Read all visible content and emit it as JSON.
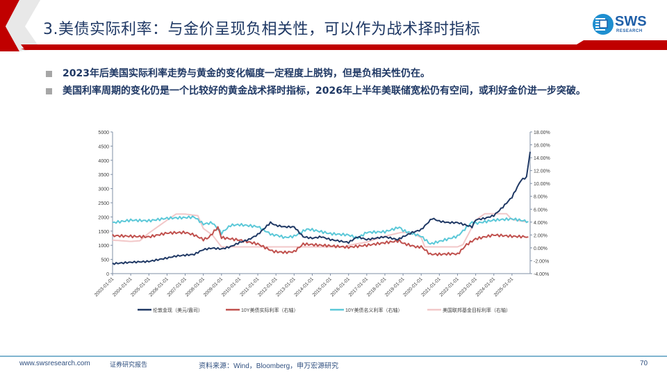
{
  "header": {
    "title": "3.美债实际利率：与金价呈现负相关性，可以作为战术择时指标",
    "logo_text": "SWS",
    "logo_sub": "RESEARCH",
    "accent_red": "#c00000",
    "title_color": "#1f3864"
  },
  "bullets": [
    {
      "text": "2023年后美国实际利率走势与黄金的变化幅度一定程度上脱钩，但是负相关性仍在。"
    },
    {
      "text": "美国利率周期的变化仍是一个比较好的黄金战术择时指标，2026年上半年美联储宽松仍有空间，或利好金价进一步突破。"
    }
  ],
  "chart_data": {
    "type": "line",
    "title": "",
    "x": [
      "2003-01-01",
      "2004-01-01",
      "2005-01-01",
      "2006-01-01",
      "2007-01-01",
      "2008-01-01",
      "2009-01-01",
      "2010-01-01",
      "2011-01-01",
      "2012-01-01",
      "2013-01-01",
      "2014-01-01",
      "2015-01-01",
      "2016-01-01",
      "2017-01-01",
      "2018-01-01",
      "2019-01-01",
      "2020-01-01",
      "2021-01-01",
      "2022-01-01",
      "2023-01-01",
      "2024-01-01",
      "2025-01-01"
    ],
    "left_axis": {
      "label": "",
      "ticks": [
        0,
        500,
        1000,
        1500,
        2000,
        2500,
        3000,
        3500,
        4000,
        4500,
        5000
      ],
      "ylim": [
        0,
        5000
      ]
    },
    "right_axis": {
      "label": "",
      "ticks": [
        "-4.00%",
        "-2.00%",
        "0.00%",
        "2.00%",
        "4.00%",
        "6.00%",
        "8.00%",
        "10.00%",
        "12.00%",
        "14.00%",
        "16.00%",
        "18.00%"
      ],
      "ylim": [
        -4,
        18
      ]
    },
    "series": [
      {
        "name": "伦敦金现（美元/盎司）",
        "axis": "left",
        "color": "#1f3864",
        "x": [
          2003,
          2004,
          2005,
          2006,
          2006.5,
          2007,
          2007.5,
          2008,
          2008.5,
          2009,
          2009.5,
          2010,
          2010.5,
          2011,
          2011.7,
          2012,
          2012.5,
          2013,
          2013.5,
          2014,
          2014.5,
          2015,
          2015.5,
          2016,
          2016.5,
          2017,
          2018,
          2018.7,
          2019,
          2019.5,
          2020,
          2020.6,
          2021,
          2021.5,
          2022,
          2022.8,
          2023,
          2023.5,
          2024,
          2024.5,
          2025,
          2025.5,
          2025.8,
          2026
        ],
        "values": [
          350,
          400,
          430,
          550,
          620,
          650,
          680,
          850,
          900,
          870,
          950,
          1100,
          1200,
          1380,
          1800,
          1700,
          1650,
          1650,
          1300,
          1250,
          1300,
          1200,
          1150,
          1100,
          1300,
          1200,
          1300,
          1200,
          1300,
          1450,
          1550,
          1950,
          1850,
          1800,
          1800,
          1650,
          1900,
          1950,
          2050,
          2350,
          2700,
          3300,
          3400,
          4300
        ]
      },
      {
        "name": "10Y美债实际利率（右轴）",
        "axis": "right",
        "color": "#c0504d",
        "x": [
          2003,
          2004,
          2005,
          2006,
          2007,
          2007.5,
          2008,
          2008.3,
          2008.8,
          2009,
          2010,
          2011,
          2011.8,
          2012,
          2012.5,
          2013,
          2013.5,
          2014,
          2015,
          2016,
          2017,
          2018,
          2018.8,
          2019,
          2019.8,
          2020,
          2020.5,
          2021,
          2021.8,
          2022,
          2022.5,
          2023,
          2024,
          2025,
          2025.9
        ],
        "values": [
          1.9,
          1.8,
          1.7,
          2.3,
          2.4,
          2.0,
          1.3,
          1.6,
          3.2,
          1.6,
          1.2,
          0.6,
          -0.5,
          -0.6,
          -0.7,
          -0.6,
          0.6,
          0.5,
          0.3,
          0.1,
          0.4,
          0.8,
          1.1,
          0.7,
          0.1,
          0.2,
          -1.0,
          -1.0,
          -0.9,
          -1.0,
          0.5,
          1.4,
          2.0,
          1.8,
          1.7
        ]
      },
      {
        "name": "10Y美债名义利率（右轴）",
        "axis": "right",
        "color": "#5bc8d8",
        "x": [
          2003,
          2004,
          2005,
          2006,
          2007,
          2007.5,
          2008,
          2008.5,
          2009,
          2009.5,
          2010,
          2011,
          2011.8,
          2012,
          2012.5,
          2013,
          2013.7,
          2014,
          2015,
          2016,
          2016.5,
          2017,
          2018,
          2018.8,
          2019,
          2020,
          2020.5,
          2021,
          2022,
          2022.8,
          2023,
          2024,
          2025,
          2025.9
        ],
        "values": [
          3.9,
          4.3,
          4.2,
          4.6,
          4.7,
          4.8,
          3.7,
          3.9,
          2.3,
          3.5,
          3.6,
          3.3,
          2.0,
          2.0,
          1.6,
          1.8,
          2.9,
          2.8,
          2.2,
          2.0,
          1.5,
          2.4,
          2.5,
          3.2,
          2.7,
          1.8,
          0.6,
          1.0,
          1.8,
          4.0,
          3.8,
          4.3,
          4.5,
          4.1
        ]
      },
      {
        "name": "美国联邦基金目标利率（右轴）",
        "axis": "right",
        "color": "#f2c7c8",
        "x": [
          2003,
          2004,
          2004.5,
          2005,
          2006,
          2006.5,
          2007,
          2007.7,
          2008,
          2008.5,
          2009,
          2015.9,
          2016,
          2017,
          2018,
          2018.9,
          2019,
          2019.5,
          2020,
          2020.2,
          2022,
          2022.3,
          2023,
          2023.5,
          2024,
          2024.7,
          2025,
          2025.9
        ],
        "values": [
          1.2,
          1.0,
          1.1,
          2.3,
          4.3,
          5.25,
          5.25,
          5.0,
          3.0,
          2.0,
          0.15,
          0.15,
          0.4,
          0.9,
          1.8,
          2.4,
          2.4,
          2.3,
          1.6,
          0.15,
          0.15,
          0.5,
          4.3,
          5.3,
          5.3,
          5.3,
          4.4,
          4.0
        ]
      }
    ],
    "legend_position": "bottom",
    "grid": false
  },
  "footer": {
    "website": "www.swsresearch.com",
    "report_type": "证券研究报告",
    "source": "资料来源：Wind，Bloomberg，申万宏源研究",
    "page_number": "70"
  }
}
